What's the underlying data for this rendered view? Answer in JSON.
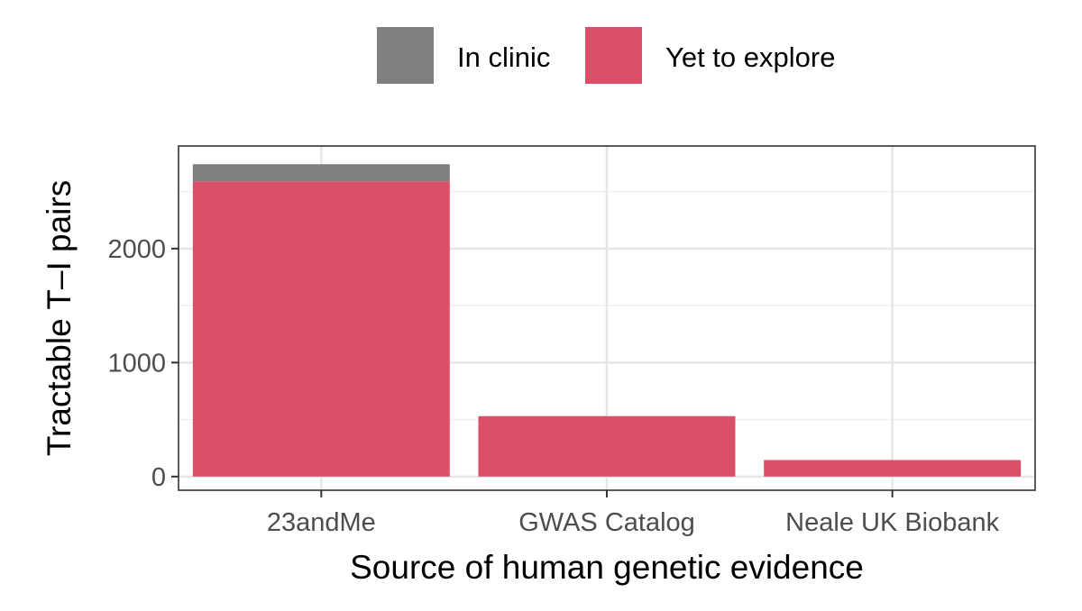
{
  "chart_data": {
    "type": "bar",
    "stacked": true,
    "categories": [
      "23andMe",
      "GWAS Catalog",
      "Neale UK Biobank"
    ],
    "series": [
      {
        "name": "Yet to explore",
        "color": "#dc4f69",
        "values": [
          2590,
          530,
          145
        ]
      },
      {
        "name": "In clinic",
        "color": "#7f7f7f",
        "values": [
          150,
          0,
          0
        ]
      }
    ],
    "xlabel": "Source of human genetic evidence",
    "ylabel": "Tractable T–I pairs",
    "ylim": [
      -120,
      2900
    ],
    "yticks": [
      0,
      1000,
      2000
    ],
    "ytick_labels": [
      "0",
      "1000",
      "2000"
    ],
    "grid": true,
    "legend": {
      "position": "top",
      "items": [
        {
          "label": "In clinic",
          "color": "#7f7f7f"
        },
        {
          "label": "Yet to explore",
          "color": "#dc4f69"
        }
      ]
    }
  }
}
